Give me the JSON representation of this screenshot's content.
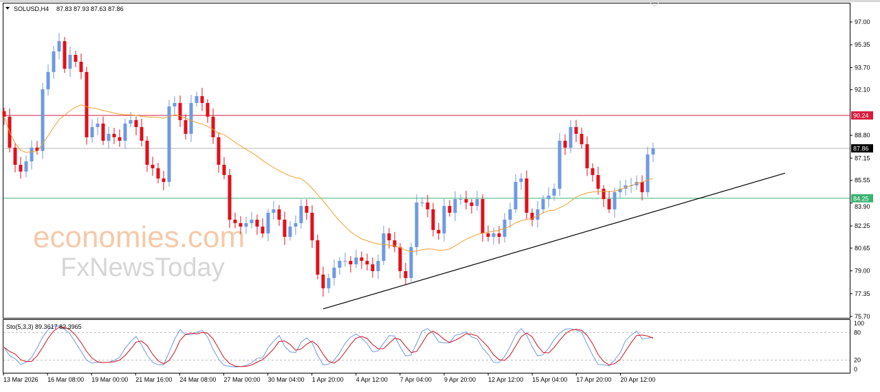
{
  "header": {
    "symbol": "SOLUSD,H4",
    "ohlc": "87.83 87.93 87.63 87.86",
    "menu_icon": "triangle-down-icon"
  },
  "watermark": {
    "line1": "economies.com",
    "line2": "FxNewsToday"
  },
  "colors": {
    "bull": "#6f9ae0",
    "bear": "#e0101a",
    "ma": "#f0a030",
    "resistance": "#d81b3c",
    "current": "#b8b8b8",
    "support": "#3cb371",
    "trendline": "#000000",
    "stoch_main": "#6f9ae0",
    "stoch_signal": "#d0101a"
  },
  "chart_data": {
    "type": "candlestick",
    "symbol": "SOLUSD",
    "timeframe": "H4",
    "ylim": [
      75.7,
      97.0
    ],
    "y_ticks": [
      "97.00",
      "95.35",
      "93.70",
      "92.10",
      "88.80",
      "87.15",
      "85.55",
      "83.90",
      "82.25",
      "80.65",
      "79.00",
      "77.35",
      "75.70"
    ],
    "x_ticks": [
      "13 Mar 2026",
      "16 Mar 08:00",
      "19 Mar 00:00",
      "21 Mar 16:00",
      "24 Mar 08:00",
      "27 Mar 00:00",
      "30 Mar 04:00",
      "1 Apr 20:00",
      "4 Apr 12:00",
      "7 Apr 04:00",
      "9 Apr 20:00",
      "12 Apr 12:00",
      "15 Apr 04:00",
      "17 Apr 20:00",
      "20 Apr 12:00"
    ],
    "closes": [
      90.15,
      87.91,
      86.67,
      86.18,
      86.92,
      87.91,
      87.67,
      92.13,
      93.38,
      94.87,
      95.61,
      93.62,
      94.62,
      94.12,
      93.38,
      88.66,
      89.4,
      89.65,
      88.41,
      88.91,
      88.66,
      88.41,
      89.65,
      89.9,
      89.4,
      88.41,
      86.67,
      86.42,
      85.68,
      85.43,
      90.89,
      91.14,
      89.9,
      88.91,
      91.14,
      91.64,
      91.14,
      90.15,
      88.66,
      86.67,
      85.93,
      82.7,
      82.45,
      82.2,
      82.45,
      82.7,
      82.2,
      81.71,
      83.2,
      83.45,
      82.7,
      81.46,
      82.2,
      82.45,
      83.69,
      83.2,
      81.21,
      78.73,
      77.74,
      78.48,
      79.23,
      79.72,
      79.72,
      79.47,
      79.97,
      79.72,
      79.47,
      78.98,
      79.72,
      81.71,
      81.21,
      80.72,
      78.98,
      78.48,
      80.72,
      83.94,
      83.94,
      83.45,
      81.96,
      81.71,
      83.69,
      83.2,
      84.19,
      84.19,
      83.94,
      83.69,
      84.19,
      81.71,
      81.46,
      81.71,
      81.46,
      82.7,
      83.45,
      85.43,
      85.68,
      83.2,
      82.7,
      83.45,
      84.19,
      84.44,
      84.94,
      88.41,
      87.91,
      89.4,
      88.91,
      88.16,
      86.42,
      85.93,
      84.94,
      84.19,
      83.45,
      84.69,
      84.94,
      85.18,
      85.18,
      85.43,
      84.69,
      87.42,
      87.86
    ],
    "levels": [
      {
        "price": 90.24,
        "label": "90.24",
        "role": "resistance"
      },
      {
        "price": 87.86,
        "label": "87.86",
        "role": "current"
      },
      {
        "price": 84.25,
        "label": "84.25",
        "role": "support"
      }
    ],
    "trendline": {
      "start": {
        "bar": 58,
        "price": 76.25
      },
      "end": {
        "bar": 142,
        "price": 86.07
      }
    },
    "ma": {
      "color": "#f0a030"
    },
    "stochastic": {
      "label": "Sto(5,3,3)",
      "main": "89.3617",
      "signal": "82.3965",
      "levels": [
        "100",
        "80",
        "20",
        "0"
      ],
      "ylim": [
        0,
        100
      ]
    }
  }
}
